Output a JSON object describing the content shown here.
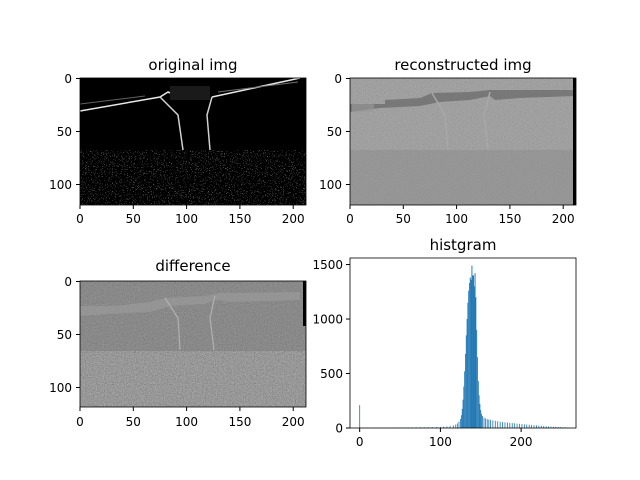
{
  "figure": {
    "background": "#ffffff",
    "panel_titles": [
      "original img",
      "reconstructed img",
      "difference",
      "histgram"
    ]
  },
  "chart_data": [
    {
      "type": "heatmap",
      "title": "original img",
      "colormap": "gray",
      "image_shape": [
        120,
        212
      ],
      "x_ticks": [
        0,
        50,
        100,
        150,
        200
      ],
      "y_ticks": [
        0,
        50,
        100
      ],
      "description_values": {
        "background": 0,
        "dominant_content": "dark image with bright edges along a bridge structure and dense bright texture in the lower third"
      }
    },
    {
      "type": "heatmap",
      "title": "reconstructed img",
      "colormap": "gray",
      "image_shape": [
        120,
        212
      ],
      "x_ticks": [
        0,
        50,
        100,
        150,
        200
      ],
      "y_ticks": [
        0,
        50,
        100
      ],
      "description_values": {
        "background": 128,
        "dominant_content": "mid-gray image with faint blocky structure and lighter texture in the lower third"
      }
    },
    {
      "type": "heatmap",
      "title": "difference",
      "colormap": "gray",
      "image_shape": [
        120,
        212
      ],
      "x_ticks": [
        0,
        50,
        100,
        150,
        200
      ],
      "y_ticks": [
        0,
        50,
        100
      ],
      "description_values": {
        "background": 115,
        "dominant_content": "mid-gray with light/dark noise, stronger contrast in the lower third"
      }
    },
    {
      "type": "bar",
      "title": "histgram",
      "color": "#1f77b4",
      "xlim": [
        -12,
        268
      ],
      "ylim": [
        0,
        1560
      ],
      "x_ticks": [
        0,
        100,
        200
      ],
      "y_ticks": [
        0,
        500,
        1000,
        1500
      ],
      "spikes": [
        {
          "x": 0,
          "y": 210
        },
        {
          "x": 137,
          "y": 1380
        },
        {
          "x": 139,
          "y": 1490
        },
        {
          "x": 141,
          "y": 1400
        },
        {
          "x": 143,
          "y": 1420
        }
      ],
      "series": [
        {
          "values": [
            [
              5,
              3
            ],
            [
              10,
              3
            ],
            [
              15,
              4
            ],
            [
              20,
              4
            ],
            [
              25,
              4
            ],
            [
              30,
              4
            ],
            [
              35,
              4
            ],
            [
              40,
              5
            ],
            [
              45,
              5
            ],
            [
              50,
              5
            ],
            [
              55,
              5
            ],
            [
              60,
              6
            ],
            [
              65,
              6
            ],
            [
              70,
              6
            ],
            [
              75,
              7
            ],
            [
              80,
              7
            ],
            [
              85,
              8
            ],
            [
              90,
              8
            ],
            [
              95,
              9
            ],
            [
              100,
              10
            ],
            [
              104,
              12
            ],
            [
              108,
              14
            ],
            [
              112,
              18
            ],
            [
              116,
              24
            ],
            [
              119,
              32
            ],
            [
              121,
              42
            ],
            [
              123,
              58
            ],
            [
              125,
              82
            ],
            [
              126,
              118
            ],
            [
              127,
              176
            ],
            [
              128,
              260
            ],
            [
              129,
              380
            ],
            [
              130,
              520
            ],
            [
              131,
              680
            ],
            [
              132,
              850
            ],
            [
              133,
              1000
            ],
            [
              134,
              1150
            ],
            [
              135,
              1260
            ],
            [
              136,
              1330
            ],
            [
              137,
              1380
            ],
            [
              138,
              1360
            ],
            [
              139,
              1490
            ],
            [
              140,
              1400
            ],
            [
              141,
              1400
            ],
            [
              142,
              1300
            ],
            [
              143,
              1420
            ],
            [
              144,
              1200
            ],
            [
              145,
              900
            ],
            [
              146,
              650
            ],
            [
              147,
              430
            ],
            [
              148,
              300
            ],
            [
              149,
              220
            ],
            [
              150,
              165
            ],
            [
              151,
              130
            ],
            [
              152,
              110
            ],
            [
              154,
              95
            ],
            [
              156,
              88
            ],
            [
              158,
              82
            ],
            [
              160,
              78
            ],
            [
              162,
              74
            ],
            [
              165,
              70
            ],
            [
              168,
              66
            ],
            [
              171,
              62
            ],
            [
              174,
              58
            ],
            [
              177,
              55
            ],
            [
              180,
              52
            ],
            [
              183,
              50
            ],
            [
              186,
              47
            ],
            [
              189,
              45
            ],
            [
              192,
              43
            ],
            [
              195,
              40
            ],
            [
              198,
              38
            ],
            [
              201,
              36
            ],
            [
              204,
              34
            ],
            [
              207,
              32
            ],
            [
              210,
              30
            ],
            [
              213,
              28
            ],
            [
              216,
              26
            ],
            [
              219,
              24
            ],
            [
              222,
              22
            ],
            [
              225,
              20
            ],
            [
              228,
              18
            ],
            [
              231,
              16
            ],
            [
              234,
              14
            ],
            [
              237,
              12
            ],
            [
              240,
              11
            ],
            [
              243,
              10
            ],
            [
              246,
              9
            ],
            [
              249,
              8
            ],
            [
              252,
              7
            ],
            [
              255,
              6
            ],
            [
              258,
              5
            ]
          ]
        }
      ]
    }
  ]
}
